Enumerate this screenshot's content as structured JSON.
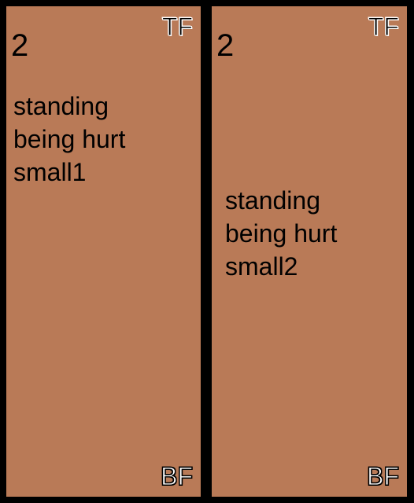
{
  "colors": {
    "background": "#000000",
    "panel": "#b97a57",
    "text": "#000000"
  },
  "panels": [
    {
      "top_label": "TF",
      "bottom_label": "BF",
      "number": "2",
      "lines": [
        "standing",
        "being hurt",
        "small1"
      ]
    },
    {
      "top_label": "TF",
      "bottom_label": "BF",
      "number": "2",
      "lines": [
        "standing",
        "being hurt",
        "small2"
      ]
    }
  ]
}
